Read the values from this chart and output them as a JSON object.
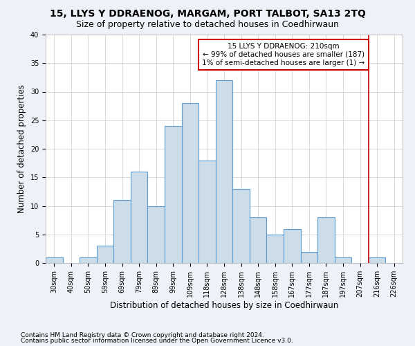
{
  "title1": "15, LLYS Y DDRAENOG, MARGAM, PORT TALBOT, SA13 2TQ",
  "title2": "Size of property relative to detached houses in Coedhirwaun",
  "xlabel": "Distribution of detached houses by size in Coedhirwaun",
  "ylabel": "Number of detached properties",
  "categories": [
    "30sqm",
    "40sqm",
    "50sqm",
    "59sqm",
    "69sqm",
    "79sqm",
    "89sqm",
    "99sqm",
    "109sqm",
    "118sqm",
    "128sqm",
    "138sqm",
    "148sqm",
    "158sqm",
    "167sqm",
    "177sqm",
    "187sqm",
    "197sqm",
    "207sqm",
    "216sqm",
    "226sqm"
  ],
  "values": [
    1,
    0,
    1,
    3,
    11,
    16,
    10,
    24,
    28,
    18,
    32,
    13,
    8,
    5,
    6,
    2,
    8,
    1,
    0,
    1,
    0
  ],
  "bar_color": "#ccdce8",
  "bar_edge_color": "#5b9bd5",
  "vline_x_index": 18.5,
  "vline_color": "#cc0000",
  "annotation_text": "15 LLYS Y DDRAENOG: 210sqm\n← 99% of detached houses are smaller (187)\n1% of semi-detached houses are larger (1) →",
  "annotation_box_color": "#ffffff",
  "annotation_box_edge": "#cc0000",
  "ylim": [
    0,
    40
  ],
  "yticks": [
    0,
    5,
    10,
    15,
    20,
    25,
    30,
    35,
    40
  ],
  "footer1": "Contains HM Land Registry data © Crown copyright and database right 2024.",
  "footer2": "Contains public sector information licensed under the Open Government Licence v3.0.",
  "background_color": "#eef2f8",
  "plot_bg_color": "#ffffff",
  "title1_fontsize": 10,
  "title2_fontsize": 9,
  "axis_label_fontsize": 8.5,
  "tick_fontsize": 7,
  "footer_fontsize": 6.5,
  "annotation_fontsize": 7.5
}
